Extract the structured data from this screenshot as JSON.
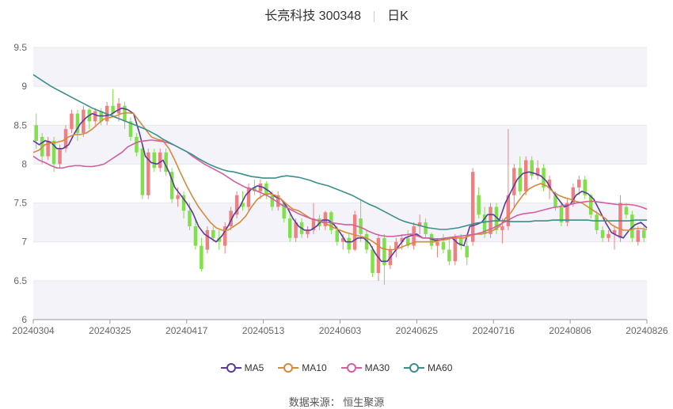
{
  "header": {
    "title": "长亮科技 300348",
    "period": "日K"
  },
  "footer": {
    "source": "数据来源： 恒生聚源"
  },
  "colors": {
    "up": "#f08080",
    "down": "#7fe04a",
    "grid": "#e8e8e8",
    "band": "#f3f3f9"
  },
  "chart_data": {
    "type": "candlestick",
    "x_ticks": [
      "20240304",
      "20240325",
      "20240417",
      "20240513",
      "20240603",
      "20240625",
      "20240716",
      "20240806",
      "20240826"
    ],
    "y_ticks": [
      "6",
      "6.5",
      "7",
      "7.5",
      "8",
      "8.5",
      "9",
      "9.5"
    ],
    "ylim": [
      6,
      9.5
    ],
    "grid": true,
    "legend_position": "bottom",
    "series": [
      {
        "name": "MA5",
        "color": "#5b3a9e",
        "values": [
          8.3,
          8.25,
          8.3,
          8.28,
          8.2,
          8.2,
          8.25,
          8.4,
          8.52,
          8.6,
          8.65,
          8.62,
          8.62,
          8.63,
          8.68,
          8.72,
          8.7,
          8.65,
          8.4,
          8.1,
          8.02,
          8.0,
          8.05,
          7.9,
          7.7,
          7.6,
          7.5,
          7.38,
          7.2,
          7.1,
          7.05,
          7.0,
          7.08,
          7.2,
          7.35,
          7.45,
          7.6,
          7.68,
          7.72,
          7.7,
          7.65,
          7.58,
          7.55,
          7.45,
          7.3,
          7.2,
          7.15,
          7.15,
          7.2,
          7.28,
          7.28,
          7.22,
          7.12,
          7.0,
          7.0,
          7.05,
          7.05,
          6.98,
          6.85,
          6.75,
          6.75,
          6.85,
          6.95,
          7.05,
          7.08,
          7.1,
          7.05,
          7.05,
          7.02,
          7.02,
          7.05,
          7.05,
          6.98,
          6.95,
          7.2,
          7.22,
          7.25,
          7.35,
          7.35,
          7.28,
          7.5,
          7.65,
          7.8,
          7.88,
          7.9,
          7.88,
          7.85,
          7.78,
          7.65,
          7.55,
          7.45,
          7.48,
          7.6,
          7.65,
          7.62,
          7.55,
          7.4,
          7.25,
          7.12,
          7.08,
          7.05,
          7.15,
          7.22,
          7.25,
          7.18
        ]
      },
      {
        "name": "MA10",
        "color": "#d9893b",
        "values": [
          8.15,
          8.18,
          8.25,
          8.27,
          8.28,
          8.3,
          8.35,
          8.38,
          8.38,
          8.4,
          8.45,
          8.52,
          8.58,
          8.6,
          8.62,
          8.65,
          8.66,
          8.65,
          8.55,
          8.45,
          8.35,
          8.32,
          8.3,
          8.2,
          8.05,
          7.88,
          7.72,
          7.58,
          7.45,
          7.35,
          7.25,
          7.18,
          7.15,
          7.15,
          7.2,
          7.25,
          7.33,
          7.45,
          7.55,
          7.6,
          7.62,
          7.6,
          7.55,
          7.48,
          7.42,
          7.4,
          7.35,
          7.3,
          7.28,
          7.25,
          7.22,
          7.18,
          7.15,
          7.12,
          7.1,
          7.08,
          7.06,
          7.03,
          6.98,
          6.92,
          6.9,
          6.9,
          6.92,
          6.95,
          6.98,
          7.0,
          7.0,
          7.0,
          7.0,
          7.02,
          7.03,
          7.05,
          7.05,
          7.05,
          7.08,
          7.1,
          7.1,
          7.12,
          7.15,
          7.2,
          7.3,
          7.38,
          7.5,
          7.6,
          7.68,
          7.72,
          7.75,
          7.72,
          7.65,
          7.6,
          7.57,
          7.55,
          7.52,
          7.5,
          7.45,
          7.4,
          7.35,
          7.3,
          7.22,
          7.18,
          7.15,
          7.15,
          7.17,
          7.17,
          7.16
        ]
      },
      {
        "name": "MA30",
        "color": "#d0609f",
        "values": [
          8.1,
          8.05,
          8.02,
          7.98,
          7.95,
          7.95,
          7.97,
          7.98,
          7.98,
          7.97,
          7.97,
          7.98,
          8.0,
          8.05,
          8.1,
          8.15,
          8.22,
          8.26,
          8.29,
          8.3,
          8.31,
          8.3,
          8.29,
          8.27,
          8.24,
          8.2,
          8.16,
          8.1,
          8.05,
          8.0,
          7.96,
          7.92,
          7.88,
          7.83,
          7.78,
          7.74,
          7.7,
          7.68,
          7.65,
          7.62,
          7.58,
          7.53,
          7.48,
          7.44,
          7.4,
          7.36,
          7.33,
          7.3,
          7.28,
          7.26,
          7.25,
          7.24,
          7.23,
          7.22,
          7.22,
          7.2,
          7.17,
          7.13,
          7.1,
          7.08,
          7.07,
          7.07,
          7.08,
          7.09,
          7.1,
          7.08,
          7.05,
          7.05,
          7.04,
          7.04,
          7.05,
          7.06,
          7.07,
          7.08,
          7.09,
          7.1,
          7.12,
          7.15,
          7.18,
          7.22,
          7.26,
          7.3,
          7.34,
          7.36,
          7.37,
          7.38,
          7.4,
          7.42,
          7.44,
          7.45,
          7.47,
          7.48,
          7.5,
          7.51,
          7.52,
          7.52,
          7.51,
          7.5,
          7.49,
          7.48,
          7.48,
          7.48,
          7.47,
          7.45,
          7.42
        ]
      },
      {
        "name": "MA60",
        "color": "#3b8f8a",
        "values": [
          9.15,
          9.1,
          9.05,
          9.0,
          8.96,
          8.92,
          8.88,
          8.84,
          8.8,
          8.76,
          8.72,
          8.69,
          8.66,
          8.63,
          8.6,
          8.57,
          8.54,
          8.51,
          8.48,
          8.45,
          8.41,
          8.37,
          8.32,
          8.28,
          8.24,
          8.2,
          8.16,
          8.12,
          8.07,
          8.03,
          7.99,
          7.96,
          7.93,
          7.91,
          7.9,
          7.88,
          7.86,
          7.84,
          7.83,
          7.82,
          7.82,
          7.82,
          7.84,
          7.85,
          7.84,
          7.83,
          7.81,
          7.79,
          7.76,
          7.74,
          7.72,
          7.69,
          7.66,
          7.63,
          7.6,
          7.56,
          7.52,
          7.48,
          7.45,
          7.41,
          7.37,
          7.33,
          7.29,
          7.26,
          7.24,
          7.22,
          7.2,
          7.18,
          7.17,
          7.16,
          7.16,
          7.17,
          7.18,
          7.2,
          7.22,
          7.24,
          7.25,
          7.26,
          7.27,
          7.27,
          7.27,
          7.26,
          7.26,
          7.26,
          7.26,
          7.27,
          7.27,
          7.27,
          7.28,
          7.28,
          7.28,
          7.28,
          7.28,
          7.28,
          7.28,
          7.27,
          7.27,
          7.27,
          7.27,
          7.27,
          7.27,
          7.27,
          7.28,
          7.28,
          7.28
        ]
      }
    ],
    "candles": [
      {
        "o": 8.5,
        "h": 8.65,
        "l": 8.2,
        "c": 8.3
      },
      {
        "o": 8.35,
        "h": 8.4,
        "l": 8.0,
        "c": 8.1
      },
      {
        "o": 8.1,
        "h": 8.35,
        "l": 8.05,
        "c": 8.3
      },
      {
        "o": 8.3,
        "h": 8.35,
        "l": 7.9,
        "c": 8.0
      },
      {
        "o": 8.0,
        "h": 8.25,
        "l": 7.95,
        "c": 8.2
      },
      {
        "o": 8.2,
        "h": 8.5,
        "l": 8.15,
        "c": 8.45
      },
      {
        "o": 8.45,
        "h": 8.7,
        "l": 8.4,
        "c": 8.65
      },
      {
        "o": 8.65,
        "h": 8.7,
        "l": 8.3,
        "c": 8.4
      },
      {
        "o": 8.4,
        "h": 8.75,
        "l": 8.35,
        "c": 8.7
      },
      {
        "o": 8.7,
        "h": 8.72,
        "l": 8.45,
        "c": 8.55
      },
      {
        "o": 8.55,
        "h": 8.72,
        "l": 8.5,
        "c": 8.68
      },
      {
        "o": 8.68,
        "h": 8.72,
        "l": 8.5,
        "c": 8.55
      },
      {
        "o": 8.55,
        "h": 8.8,
        "l": 8.5,
        "c": 8.75
      },
      {
        "o": 8.75,
        "h": 8.96,
        "l": 8.6,
        "c": 8.65
      },
      {
        "o": 8.65,
        "h": 8.85,
        "l": 8.55,
        "c": 8.78
      },
      {
        "o": 8.75,
        "h": 8.8,
        "l": 8.45,
        "c": 8.55
      },
      {
        "o": 8.55,
        "h": 8.6,
        "l": 8.3,
        "c": 8.35
      },
      {
        "o": 8.35,
        "h": 8.4,
        "l": 8.1,
        "c": 8.15
      },
      {
        "o": 8.2,
        "h": 8.25,
        "l": 7.55,
        "c": 7.6
      },
      {
        "o": 7.6,
        "h": 8.2,
        "l": 7.55,
        "c": 8.15
      },
      {
        "o": 8.15,
        "h": 8.2,
        "l": 7.9,
        "c": 7.95
      },
      {
        "o": 7.95,
        "h": 8.2,
        "l": 7.9,
        "c": 8.15
      },
      {
        "o": 8.15,
        "h": 8.2,
        "l": 7.85,
        "c": 7.9
      },
      {
        "o": 7.9,
        "h": 7.95,
        "l": 7.5,
        "c": 7.55
      },
      {
        "o": 7.55,
        "h": 7.7,
        "l": 7.45,
        "c": 7.6
      },
      {
        "o": 7.6,
        "h": 7.65,
        "l": 7.3,
        "c": 7.4
      },
      {
        "o": 7.4,
        "h": 7.5,
        "l": 7.15,
        "c": 7.2
      },
      {
        "o": 7.2,
        "h": 7.3,
        "l": 6.9,
        "c": 6.95
      },
      {
        "o": 6.95,
        "h": 7.05,
        "l": 6.62,
        "c": 6.65
      },
      {
        "o": 6.9,
        "h": 7.2,
        "l": 6.85,
        "c": 7.15
      },
      {
        "o": 7.15,
        "h": 7.2,
        "l": 7.0,
        "c": 7.05
      },
      {
        "o": 7.05,
        "h": 7.15,
        "l": 6.9,
        "c": 7.0
      },
      {
        "o": 6.95,
        "h": 7.25,
        "l": 6.85,
        "c": 7.2
      },
      {
        "o": 7.2,
        "h": 7.45,
        "l": 7.15,
        "c": 7.4
      },
      {
        "o": 7.35,
        "h": 7.65,
        "l": 7.3,
        "c": 7.6
      },
      {
        "o": 7.5,
        "h": 7.65,
        "l": 7.4,
        "c": 7.45
      },
      {
        "o": 7.45,
        "h": 7.75,
        "l": 7.4,
        "c": 7.7
      },
      {
        "o": 7.7,
        "h": 7.8,
        "l": 7.6,
        "c": 7.65
      },
      {
        "o": 7.65,
        "h": 7.8,
        "l": 7.55,
        "c": 7.75
      },
      {
        "o": 7.75,
        "h": 7.78,
        "l": 7.55,
        "c": 7.6
      },
      {
        "o": 7.6,
        "h": 7.65,
        "l": 7.4,
        "c": 7.45
      },
      {
        "o": 7.45,
        "h": 7.65,
        "l": 7.4,
        "c": 7.6
      },
      {
        "o": 7.5,
        "h": 7.52,
        "l": 7.25,
        "c": 7.3
      },
      {
        "o": 7.3,
        "h": 7.35,
        "l": 7.0,
        "c": 7.05
      },
      {
        "o": 7.05,
        "h": 7.3,
        "l": 7.0,
        "c": 7.25
      },
      {
        "o": 7.25,
        "h": 7.3,
        "l": 7.05,
        "c": 7.1
      },
      {
        "o": 7.1,
        "h": 7.2,
        "l": 7.05,
        "c": 7.15
      },
      {
        "o": 7.15,
        "h": 7.5,
        "l": 7.1,
        "c": 7.3
      },
      {
        "o": 7.3,
        "h": 7.35,
        "l": 7.15,
        "c": 7.2
      },
      {
        "o": 7.2,
        "h": 7.4,
        "l": 7.15,
        "c": 7.38
      },
      {
        "o": 7.38,
        "h": 7.4,
        "l": 7.1,
        "c": 7.15
      },
      {
        "o": 7.15,
        "h": 7.2,
        "l": 6.95,
        "c": 7.0
      },
      {
        "o": 7.0,
        "h": 7.1,
        "l": 6.9,
        "c": 7.05
      },
      {
        "o": 7.05,
        "h": 7.1,
        "l": 6.85,
        "c": 6.9
      },
      {
        "o": 6.9,
        "h": 7.4,
        "l": 6.88,
        "c": 7.35
      },
      {
        "o": 7.3,
        "h": 7.55,
        "l": 7.0,
        "c": 7.1
      },
      {
        "o": 7.1,
        "h": 7.15,
        "l": 6.85,
        "c": 6.9
      },
      {
        "o": 6.9,
        "h": 6.95,
        "l": 6.55,
        "c": 6.6
      },
      {
        "o": 6.6,
        "h": 7.1,
        "l": 6.5,
        "c": 7.05
      },
      {
        "o": 7.05,
        "h": 7.1,
        "l": 6.45,
        "c": 6.7
      },
      {
        "o": 6.7,
        "h": 6.95,
        "l": 6.65,
        "c": 6.9
      },
      {
        "o": 6.9,
        "h": 7.05,
        "l": 6.8,
        "c": 7.0
      },
      {
        "o": 7.0,
        "h": 7.1,
        "l": 6.9,
        "c": 7.05
      },
      {
        "o": 7.05,
        "h": 7.15,
        "l": 6.92,
        "c": 6.95
      },
      {
        "o": 6.95,
        "h": 7.25,
        "l": 6.9,
        "c": 7.2
      },
      {
        "o": 7.2,
        "h": 7.35,
        "l": 7.1,
        "c": 7.25
      },
      {
        "o": 7.25,
        "h": 7.3,
        "l": 7.05,
        "c": 7.1
      },
      {
        "o": 7.1,
        "h": 7.12,
        "l": 6.9,
        "c": 6.95
      },
      {
        "o": 6.95,
        "h": 7.05,
        "l": 6.8,
        "c": 7.0
      },
      {
        "o": 7.0,
        "h": 7.1,
        "l": 6.85,
        "c": 6.9
      },
      {
        "o": 6.9,
        "h": 7.05,
        "l": 6.7,
        "c": 6.75
      },
      {
        "o": 6.75,
        "h": 7.1,
        "l": 6.7,
        "c": 7.05
      },
      {
        "o": 7.05,
        "h": 7.1,
        "l": 6.9,
        "c": 6.95
      },
      {
        "o": 6.95,
        "h": 7.05,
        "l": 6.7,
        "c": 6.8
      },
      {
        "o": 7.0,
        "h": 7.95,
        "l": 6.95,
        "c": 7.9
      },
      {
        "o": 7.6,
        "h": 7.7,
        "l": 7.3,
        "c": 7.35
      },
      {
        "o": 7.35,
        "h": 7.45,
        "l": 7.05,
        "c": 7.1
      },
      {
        "o": 7.1,
        "h": 7.5,
        "l": 7.05,
        "c": 7.45
      },
      {
        "o": 7.45,
        "h": 7.5,
        "l": 7.1,
        "c": 7.15
      },
      {
        "o": 7.15,
        "h": 7.3,
        "l": 6.98,
        "c": 7.2
      },
      {
        "o": 7.2,
        "h": 8.45,
        "l": 7.15,
        "c": 7.6
      },
      {
        "o": 7.6,
        "h": 8.0,
        "l": 7.45,
        "c": 7.95
      },
      {
        "o": 7.95,
        "h": 8.1,
        "l": 7.6,
        "c": 7.65
      },
      {
        "o": 7.65,
        "h": 8.1,
        "l": 7.6,
        "c": 8.05
      },
      {
        "o": 8.05,
        "h": 8.1,
        "l": 7.8,
        "c": 7.85
      },
      {
        "o": 7.85,
        "h": 8.05,
        "l": 7.8,
        "c": 7.95
      },
      {
        "o": 7.95,
        "h": 8.0,
        "l": 7.65,
        "c": 7.7
      },
      {
        "o": 7.7,
        "h": 7.85,
        "l": 7.55,
        "c": 7.8
      },
      {
        "o": 7.6,
        "h": 7.65,
        "l": 7.4,
        "c": 7.45
      },
      {
        "o": 7.45,
        "h": 7.5,
        "l": 7.2,
        "c": 7.25
      },
      {
        "o": 7.25,
        "h": 7.55,
        "l": 7.2,
        "c": 7.5
      },
      {
        "o": 7.5,
        "h": 7.75,
        "l": 7.45,
        "c": 7.7
      },
      {
        "o": 7.7,
        "h": 7.85,
        "l": 7.6,
        "c": 7.8
      },
      {
        "o": 7.8,
        "h": 7.85,
        "l": 7.55,
        "c": 7.6
      },
      {
        "o": 7.6,
        "h": 7.62,
        "l": 7.3,
        "c": 7.35
      },
      {
        "o": 7.35,
        "h": 7.4,
        "l": 7.1,
        "c": 7.15
      },
      {
        "o": 7.15,
        "h": 7.2,
        "l": 7.0,
        "c": 7.05
      },
      {
        "o": 7.05,
        "h": 7.15,
        "l": 7.0,
        "c": 7.1
      },
      {
        "o": 7.1,
        "h": 7.2,
        "l": 6.9,
        "c": 7.15
      },
      {
        "o": 7.05,
        "h": 7.6,
        "l": 7.0,
        "c": 7.5
      },
      {
        "o": 7.45,
        "h": 7.5,
        "l": 7.3,
        "c": 7.35
      },
      {
        "o": 7.35,
        "h": 7.4,
        "l": 7.0,
        "c": 7.05
      },
      {
        "o": 7.0,
        "h": 7.2,
        "l": 6.95,
        "c": 7.15
      },
      {
        "o": 7.15,
        "h": 7.2,
        "l": 7.0,
        "c": 7.05
      }
    ]
  }
}
